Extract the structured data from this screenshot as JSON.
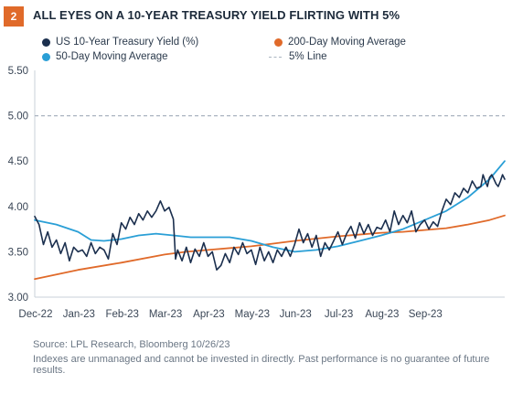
{
  "figure": {
    "number": "2",
    "title": "ALL EYES ON A 10-YEAR TREASURY YIELD FLIRTING WITH 5%",
    "source": "Source: LPL Research, Bloomberg  10/26/23",
    "disclaimer": "Indexes are unmanaged and cannot be invested in directly. Past performance is no guarantee of future results."
  },
  "legend": [
    {
      "label": "US 10-Year Treasury Yield (%)",
      "color": "#1b2f4e",
      "marker": "dot"
    },
    {
      "label": "200-Day Moving Average",
      "color": "#e06a2a",
      "marker": "dot"
    },
    {
      "label": "50-Day Moving Average",
      "color": "#2a9fd6",
      "marker": "dot"
    },
    {
      "label": "5% Line",
      "color": "#aab4c0",
      "marker": "dash"
    }
  ],
  "chart_data": {
    "type": "line",
    "x_unit": "month index (0 = start of Dec-22)",
    "xlim": [
      0,
      10.85
    ],
    "ylim": [
      3.0,
      5.5
    ],
    "yticks": [
      "3.00",
      "3.50",
      "4.00",
      "4.50",
      "5.00",
      "5.50"
    ],
    "yticks_values": [
      3.0,
      3.5,
      4.0,
      4.5,
      5.0,
      5.5
    ],
    "xticks": [
      "Dec-22",
      "Jan-23",
      "Feb-23",
      "Mar-23",
      "Apr-23",
      "May-23",
      "Jun-23",
      "Jul-23",
      "Aug-23",
      "Sep-23"
    ],
    "grid": false,
    "legend_position": "top",
    "reference_line": {
      "name": "5% Line",
      "y": 5.0,
      "color": "#aab4c0"
    },
    "series": [
      {
        "name": "US 10-Year Treasury Yield (%)",
        "color": "#1b2f4e",
        "points": [
          [
            0.0,
            3.89
          ],
          [
            0.1,
            3.8
          ],
          [
            0.2,
            3.58
          ],
          [
            0.3,
            3.72
          ],
          [
            0.4,
            3.55
          ],
          [
            0.5,
            3.63
          ],
          [
            0.6,
            3.48
          ],
          [
            0.7,
            3.6
          ],
          [
            0.8,
            3.4
          ],
          [
            0.9,
            3.55
          ],
          [
            1.0,
            3.5
          ],
          [
            1.1,
            3.52
          ],
          [
            1.2,
            3.45
          ],
          [
            1.3,
            3.6
          ],
          [
            1.4,
            3.48
          ],
          [
            1.5,
            3.55
          ],
          [
            1.6,
            3.52
          ],
          [
            1.7,
            3.42
          ],
          [
            1.8,
            3.7
          ],
          [
            1.9,
            3.58
          ],
          [
            2.0,
            3.82
          ],
          [
            2.1,
            3.75
          ],
          [
            2.2,
            3.88
          ],
          [
            2.3,
            3.8
          ],
          [
            2.4,
            3.92
          ],
          [
            2.5,
            3.85
          ],
          [
            2.6,
            3.95
          ],
          [
            2.7,
            3.88
          ],
          [
            2.8,
            3.95
          ],
          [
            2.9,
            4.06
          ],
          [
            3.0,
            3.95
          ],
          [
            3.1,
            3.99
          ],
          [
            3.2,
            3.86
          ],
          [
            3.25,
            3.42
          ],
          [
            3.3,
            3.52
          ],
          [
            3.4,
            3.4
          ],
          [
            3.5,
            3.55
          ],
          [
            3.6,
            3.38
          ],
          [
            3.7,
            3.53
          ],
          [
            3.8,
            3.45
          ],
          [
            3.9,
            3.6
          ],
          [
            4.0,
            3.45
          ],
          [
            4.1,
            3.5
          ],
          [
            4.2,
            3.3
          ],
          [
            4.3,
            3.35
          ],
          [
            4.4,
            3.48
          ],
          [
            4.5,
            3.38
          ],
          [
            4.6,
            3.55
          ],
          [
            4.7,
            3.47
          ],
          [
            4.8,
            3.6
          ],
          [
            4.9,
            3.48
          ],
          [
            5.0,
            3.52
          ],
          [
            5.1,
            3.36
          ],
          [
            5.2,
            3.55
          ],
          [
            5.3,
            3.4
          ],
          [
            5.4,
            3.5
          ],
          [
            5.5,
            3.38
          ],
          [
            5.6,
            3.52
          ],
          [
            5.7,
            3.45
          ],
          [
            5.8,
            3.55
          ],
          [
            5.9,
            3.45
          ],
          [
            6.0,
            3.58
          ],
          [
            6.1,
            3.75
          ],
          [
            6.2,
            3.6
          ],
          [
            6.3,
            3.7
          ],
          [
            6.4,
            3.55
          ],
          [
            6.5,
            3.68
          ],
          [
            6.6,
            3.45
          ],
          [
            6.7,
            3.6
          ],
          [
            6.8,
            3.52
          ],
          [
            6.9,
            3.62
          ],
          [
            7.0,
            3.72
          ],
          [
            7.1,
            3.58
          ],
          [
            7.2,
            3.7
          ],
          [
            7.3,
            3.78
          ],
          [
            7.4,
            3.65
          ],
          [
            7.5,
            3.82
          ],
          [
            7.6,
            3.7
          ],
          [
            7.7,
            3.8
          ],
          [
            7.8,
            3.68
          ],
          [
            7.9,
            3.77
          ],
          [
            8.0,
            3.75
          ],
          [
            8.1,
            3.85
          ],
          [
            8.2,
            3.72
          ],
          [
            8.3,
            3.95
          ],
          [
            8.4,
            3.8
          ],
          [
            8.5,
            3.9
          ],
          [
            8.6,
            3.82
          ],
          [
            8.7,
            3.95
          ],
          [
            8.8,
            3.72
          ],
          [
            8.9,
            3.8
          ],
          [
            9.0,
            3.85
          ],
          [
            9.1,
            3.75
          ],
          [
            9.2,
            3.83
          ],
          [
            9.3,
            3.78
          ],
          [
            9.4,
            3.95
          ],
          [
            9.5,
            4.08
          ],
          [
            9.6,
            4.02
          ],
          [
            9.7,
            4.15
          ],
          [
            9.8,
            4.1
          ],
          [
            9.9,
            4.2
          ],
          [
            10.0,
            4.15
          ],
          [
            10.1,
            4.28
          ],
          [
            10.2,
            4.2
          ],
          [
            10.3,
            4.22
          ],
          [
            10.35,
            4.35
          ],
          [
            10.4,
            4.28
          ],
          [
            10.45,
            4.22
          ],
          [
            10.5,
            4.32
          ],
          [
            10.55,
            4.35
          ],
          [
            10.6,
            4.3
          ],
          [
            10.65,
            4.25
          ],
          [
            10.7,
            4.22
          ],
          [
            10.75,
            4.28
          ],
          [
            10.8,
            4.35
          ],
          [
            10.85,
            4.3
          ]
        ]
      },
      {
        "name": "200-Day Moving Average",
        "color": "#e06a2a",
        "points": [
          [
            0.0,
            3.2
          ],
          [
            1.0,
            3.3
          ],
          [
            2.0,
            3.38
          ],
          [
            3.0,
            3.47
          ],
          [
            3.5,
            3.5
          ],
          [
            4.0,
            3.52
          ],
          [
            5.0,
            3.56
          ],
          [
            5.5,
            3.59
          ],
          [
            6.0,
            3.62
          ],
          [
            7.0,
            3.67
          ],
          [
            8.0,
            3.71
          ],
          [
            8.5,
            3.72
          ],
          [
            9.0,
            3.74
          ],
          [
            9.5,
            3.76
          ],
          [
            10.0,
            3.8
          ],
          [
            10.5,
            3.85
          ],
          [
            10.85,
            3.9
          ]
        ]
      },
      {
        "name": "50-Day Moving Average",
        "color": "#2a9fd6",
        "points": [
          [
            0.0,
            3.85
          ],
          [
            0.5,
            3.8
          ],
          [
            1.0,
            3.72
          ],
          [
            1.3,
            3.63
          ],
          [
            1.6,
            3.62
          ],
          [
            2.0,
            3.64
          ],
          [
            2.4,
            3.68
          ],
          [
            2.8,
            3.7
          ],
          [
            3.2,
            3.68
          ],
          [
            3.6,
            3.66
          ],
          [
            4.0,
            3.66
          ],
          [
            4.5,
            3.66
          ],
          [
            5.0,
            3.62
          ],
          [
            5.5,
            3.55
          ],
          [
            6.0,
            3.5
          ],
          [
            6.5,
            3.52
          ],
          [
            7.0,
            3.56
          ],
          [
            7.5,
            3.62
          ],
          [
            8.0,
            3.68
          ],
          [
            8.5,
            3.75
          ],
          [
            9.0,
            3.85
          ],
          [
            9.5,
            3.95
          ],
          [
            10.0,
            4.1
          ],
          [
            10.5,
            4.3
          ],
          [
            10.85,
            4.5
          ]
        ]
      }
    ]
  }
}
